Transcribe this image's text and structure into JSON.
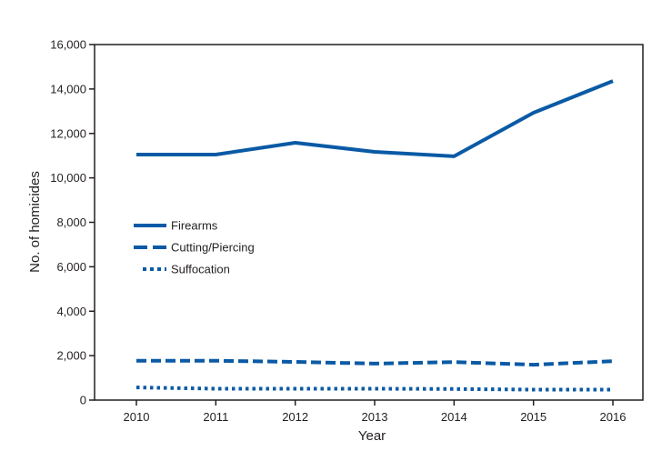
{
  "chart_data": {
    "type": "line",
    "title": "",
    "xlabel": "Year",
    "ylabel": "No. of homicides",
    "x": [
      2010,
      2011,
      2012,
      2013,
      2014,
      2015,
      2016
    ],
    "x_tick_labels": [
      "2010",
      "2011",
      "2012",
      "2013",
      "2014",
      "2015",
      "2016"
    ],
    "ylim": [
      0,
      16000
    ],
    "y_ticks": [
      0,
      2000,
      4000,
      6000,
      8000,
      10000,
      12000,
      14000,
      16000
    ],
    "y_tick_labels": [
      "0",
      "2,000",
      "4,000",
      "6,000",
      "8,000",
      "10,000",
      "12,000",
      "14,000",
      "16,000"
    ],
    "grid": false,
    "legend_position": "center-left",
    "series": [
      {
        "name": "Firearms",
        "style": "solid",
        "color": "#0a5aa5",
        "values": [
          11050,
          11050,
          11580,
          11170,
          10970,
          12930,
          14360
        ]
      },
      {
        "name": "Cutting/Piercing",
        "style": "dashed",
        "color": "#0a5aa5",
        "values": [
          1770,
          1770,
          1720,
          1640,
          1710,
          1590,
          1750
        ]
      },
      {
        "name": "Suffocation",
        "style": "dotted",
        "color": "#0a5aa5",
        "values": [
          570,
          510,
          510,
          510,
          500,
          470,
          470
        ]
      }
    ]
  }
}
